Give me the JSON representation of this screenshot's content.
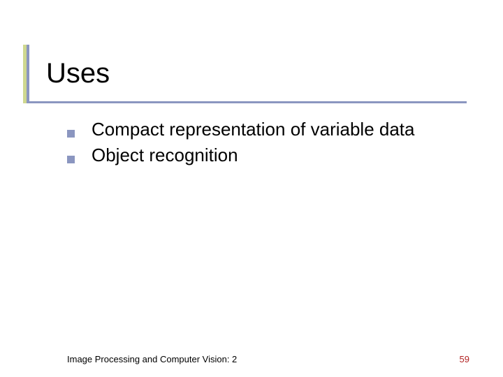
{
  "slide": {
    "title": "Uses",
    "title_fontsize": 40,
    "title_color": "#000000",
    "bullets": [
      {
        "text": "Compact representation of variable data"
      },
      {
        "text": "Object recognition"
      }
    ],
    "bullet_fontsize": 26,
    "bullet_marker": {
      "shape": "square",
      "size": 11,
      "color": "#8b96c0"
    },
    "accent": {
      "vertical_light_color": "#cfd88f",
      "vertical_dark_color": "#8b96c0",
      "horizontal_color": "#8b96c0"
    },
    "background_color": "#ffffff"
  },
  "footer": {
    "text": "Image Processing and Computer Vision: 2",
    "text_fontsize": 13,
    "text_color": "#000000",
    "page_number": "59",
    "page_number_color": "#b22222",
    "page_number_fontsize": 13
  }
}
